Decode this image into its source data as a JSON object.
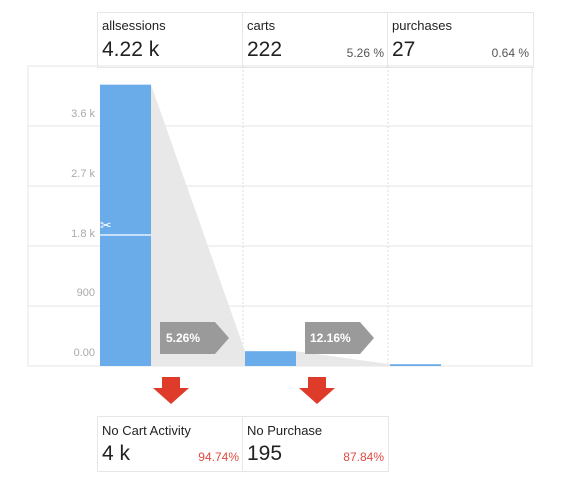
{
  "chart_data": {
    "type": "bar",
    "title": "",
    "categories": [
      "allsessions",
      "carts",
      "purchases"
    ],
    "values": [
      4220,
      222,
      27
    ],
    "value_labels": [
      "4.22 k",
      "222",
      "27"
    ],
    "overall_conversion": [
      "",
      "5.26 %",
      "0.64 %"
    ],
    "step_conversion": [
      "5.26%",
      "12.16%"
    ],
    "yticks": [
      "0.00",
      "900",
      "1.8 k",
      "2.7 k",
      "3.6 k"
    ],
    "ytick_values": [
      0,
      900,
      1800,
      2700,
      3600
    ],
    "ylim": [
      0,
      4500
    ],
    "grid": true,
    "bar_color": "#6aabea",
    "arrow_color": "#9a9a9a",
    "drop_arrow_color": "#de3b2b",
    "dropoffs": [
      {
        "label": "No Cart Activity",
        "value": "4 k",
        "pct": "94.74%"
      },
      {
        "label": "No Purchase",
        "value": "195",
        "pct": "87.84%"
      }
    ]
  },
  "icons": {
    "scissors": "scissors-icon",
    "drop_arrow": "down-arrow-icon"
  }
}
